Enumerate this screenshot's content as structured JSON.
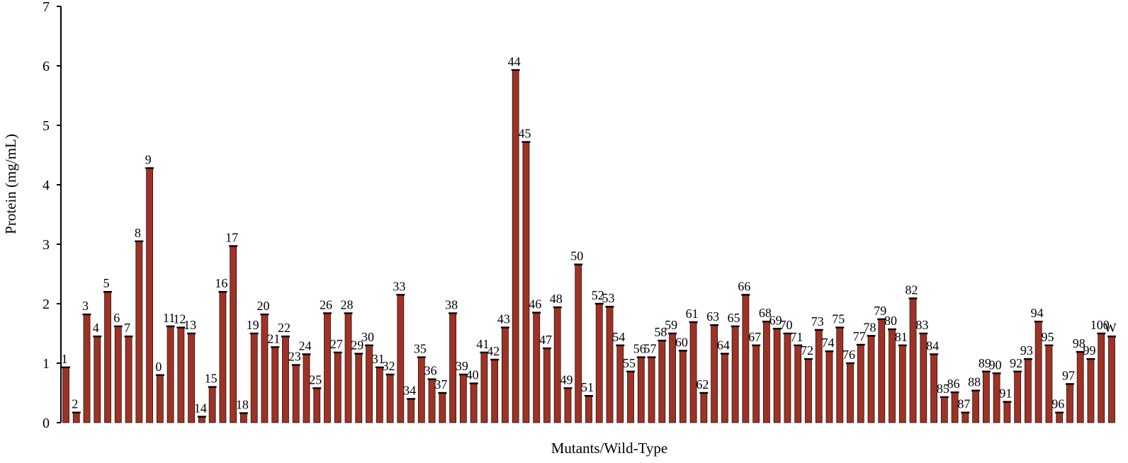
{
  "chart_data": {
    "type": "bar",
    "categories": [
      "1",
      "2",
      "3",
      "4",
      "5",
      "6",
      "7",
      "8",
      "9",
      "0",
      "11",
      "12",
      "13",
      "14",
      "15",
      "16",
      "17",
      "18",
      "19",
      "20",
      "21",
      "22",
      "23",
      "24",
      "25",
      "26",
      "27",
      "28",
      "29",
      "30",
      "31",
      "32",
      "33",
      "34",
      "35",
      "36",
      "37",
      "38",
      "39",
      "40",
      "41",
      "42",
      "43",
      "44",
      "45",
      "46",
      "47",
      "48",
      "49",
      "50",
      "51",
      "52",
      "53",
      "54",
      "55",
      "56",
      "57",
      "58",
      "59",
      "60",
      "61",
      "62",
      "63",
      "64",
      "65",
      "66",
      "67",
      "68",
      "69",
      "70",
      "71",
      "72",
      "73",
      "74",
      "75",
      "76",
      "77",
      "78",
      "79",
      "80",
      "81",
      "82",
      "83",
      "84",
      "85",
      "86",
      "87",
      "88",
      "89",
      "90",
      "91",
      "92",
      "93",
      "94",
      "95",
      "96",
      "97",
      "98",
      "99",
      "100",
      "W"
    ],
    "values": [
      0.93,
      0.17,
      1.82,
      1.45,
      2.2,
      1.62,
      1.45,
      3.05,
      4.28,
      0.8,
      1.62,
      1.6,
      1.5,
      0.1,
      0.6,
      2.2,
      2.97,
      0.16,
      1.5,
      1.82,
      1.27,
      1.45,
      0.97,
      1.15,
      0.58,
      1.84,
      1.18,
      1.84,
      1.16,
      1.3,
      0.93,
      0.81,
      2.15,
      0.4,
      1.1,
      0.73,
      0.5,
      1.84,
      0.81,
      0.66,
      1.18,
      1.06,
      1.6,
      5.93,
      4.72,
      1.85,
      1.25,
      1.94,
      0.58,
      2.66,
      0.45,
      2.0,
      1.95,
      1.3,
      0.86,
      1.1,
      1.1,
      1.38,
      1.5,
      1.21,
      1.69,
      0.5,
      1.64,
      1.16,
      1.62,
      2.15,
      1.3,
      1.7,
      1.58,
      1.5,
      1.3,
      1.07,
      1.56,
      1.2,
      1.6,
      1.0,
      1.31,
      1.46,
      1.74,
      1.57,
      1.3,
      2.09,
      1.5,
      1.15,
      0.43,
      0.51,
      0.17,
      0.54,
      0.86,
      0.83,
      0.35,
      0.86,
      1.07,
      1.7,
      1.3,
      0.17,
      0.65,
      1.19,
      1.07,
      1.5,
      1.45
    ],
    "bar_labels": [
      "1",
      "2",
      "3",
      "4",
      "5",
      "6",
      "7",
      "8",
      "9",
      "0",
      "11",
      "12",
      "13",
      "14",
      "15",
      "16",
      "17",
      "18",
      "19",
      "20",
      "21",
      "22",
      "23",
      "24",
      "25",
      "26",
      "27",
      "28",
      "29",
      "30",
      "31",
      "32",
      "33",
      "34",
      "35",
      "36",
      "37",
      "38",
      "39",
      "40",
      "41",
      "42",
      "43",
      "44",
      "45",
      "46",
      "47",
      "48",
      "49",
      "50",
      "51",
      "52",
      "53",
      "54",
      "55",
      "56",
      "57",
      "58",
      "59",
      "60",
      "61",
      "62",
      "63",
      "64",
      "65",
      "66",
      "67",
      "68",
      "69",
      "70",
      "71",
      "72",
      "73",
      "74",
      "75",
      "76",
      "77",
      "78",
      "79",
      "80",
      "81",
      "82",
      "83",
      "84",
      "85",
      "86",
      "87",
      "88",
      "89",
      "90",
      "91",
      "92",
      "93",
      "94",
      "95",
      "96",
      "97",
      "98",
      "99",
      "100",
      "W"
    ],
    "error_bars": true,
    "title": "",
    "xlabel": "Mutants/Wild-Type",
    "ylabel": "Protein (mg/mL)",
    "ylim": [
      0,
      7
    ],
    "yticks": [
      "0",
      "1",
      "2",
      "3",
      "4",
      "5",
      "6",
      "7"
    ],
    "grid": false,
    "legend": "none",
    "colors": {
      "bar": "#9c3326",
      "bar_edge": "#2b0d09",
      "axis": "#000000",
      "text": "#000000"
    }
  }
}
